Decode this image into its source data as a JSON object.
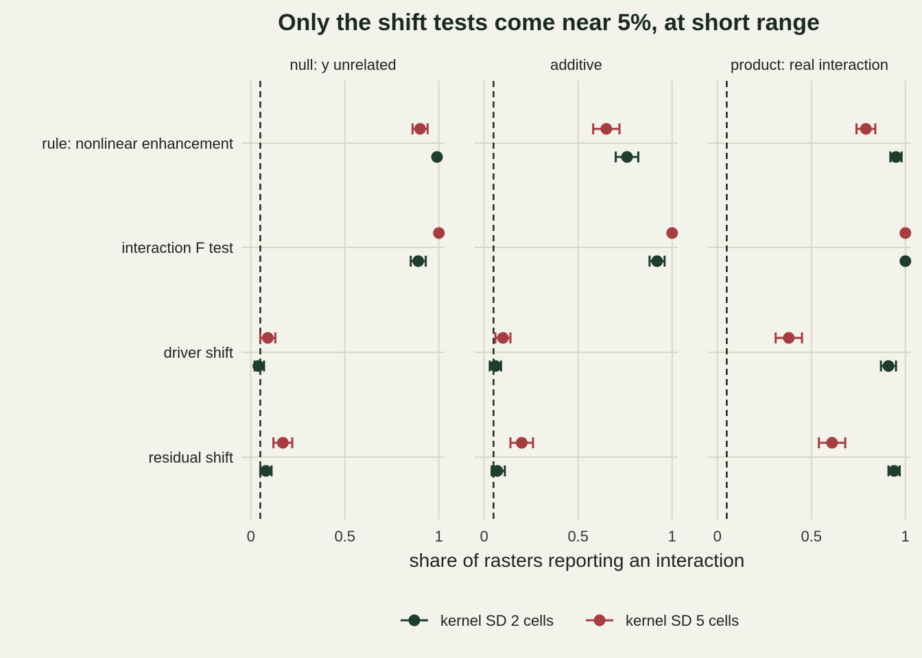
{
  "chart_data": {
    "type": "scatter",
    "title": "Only the shift tests come near 5%, at short range",
    "xlabel": "share of rasters reporting an interaction",
    "ylabel": "",
    "xlim": [
      -0.05,
      1.03
    ],
    "xticks": [
      0,
      0.5,
      1
    ],
    "xtick_labels": [
      "0",
      "0.5",
      "1"
    ],
    "reference_line": 0.05,
    "grid": true,
    "legend_position": "bottom",
    "categories": [
      "rule: nonlinear enhancement",
      "interaction F test",
      "driver shift",
      "residual shift"
    ],
    "panels": [
      {
        "label": "null: y unrelated",
        "series": [
          {
            "name": "kernel SD 2 cells",
            "values": [
              0.99,
              0.89,
              0.04,
              0.08
            ],
            "lower": [
              0.99,
              0.85,
              0.02,
              0.05
            ],
            "upper": [
              0.99,
              0.93,
              0.07,
              0.11
            ]
          },
          {
            "name": "kernel SD 5 cells",
            "values": [
              0.9,
              1.0,
              0.09,
              0.17
            ],
            "lower": [
              0.86,
              1.0,
              0.05,
              0.12
            ],
            "upper": [
              0.94,
              1.0,
              0.13,
              0.22
            ]
          }
        ]
      },
      {
        "label": "additive",
        "series": [
          {
            "name": "kernel SD 2 cells",
            "values": [
              0.76,
              0.92,
              0.06,
              0.07
            ],
            "lower": [
              0.7,
              0.88,
              0.03,
              0.04
            ],
            "upper": [
              0.82,
              0.96,
              0.09,
              0.11
            ]
          },
          {
            "name": "kernel SD 5 cells",
            "values": [
              0.65,
              1.0,
              0.1,
              0.2
            ],
            "lower": [
              0.58,
              1.0,
              0.06,
              0.14
            ],
            "upper": [
              0.72,
              1.0,
              0.14,
              0.26
            ]
          }
        ]
      },
      {
        "label": "product: real interaction",
        "series": [
          {
            "name": "kernel SD 2 cells",
            "values": [
              0.95,
              1.0,
              0.91,
              0.94
            ],
            "lower": [
              0.92,
              1.0,
              0.87,
              0.91
            ],
            "upper": [
              0.98,
              1.0,
              0.95,
              0.97
            ]
          },
          {
            "name": "kernel SD 5 cells",
            "values": [
              0.79,
              1.0,
              0.38,
              0.61
            ],
            "lower": [
              0.74,
              1.0,
              0.31,
              0.54
            ],
            "upper": [
              0.84,
              1.0,
              0.45,
              0.68
            ]
          }
        ]
      }
    ],
    "colors": {
      "kernel SD 2 cells": "#1f3d2c",
      "kernel SD 5 cells": "#a63d40",
      "grid": "#d8d8c8",
      "reference": "#222222"
    }
  }
}
